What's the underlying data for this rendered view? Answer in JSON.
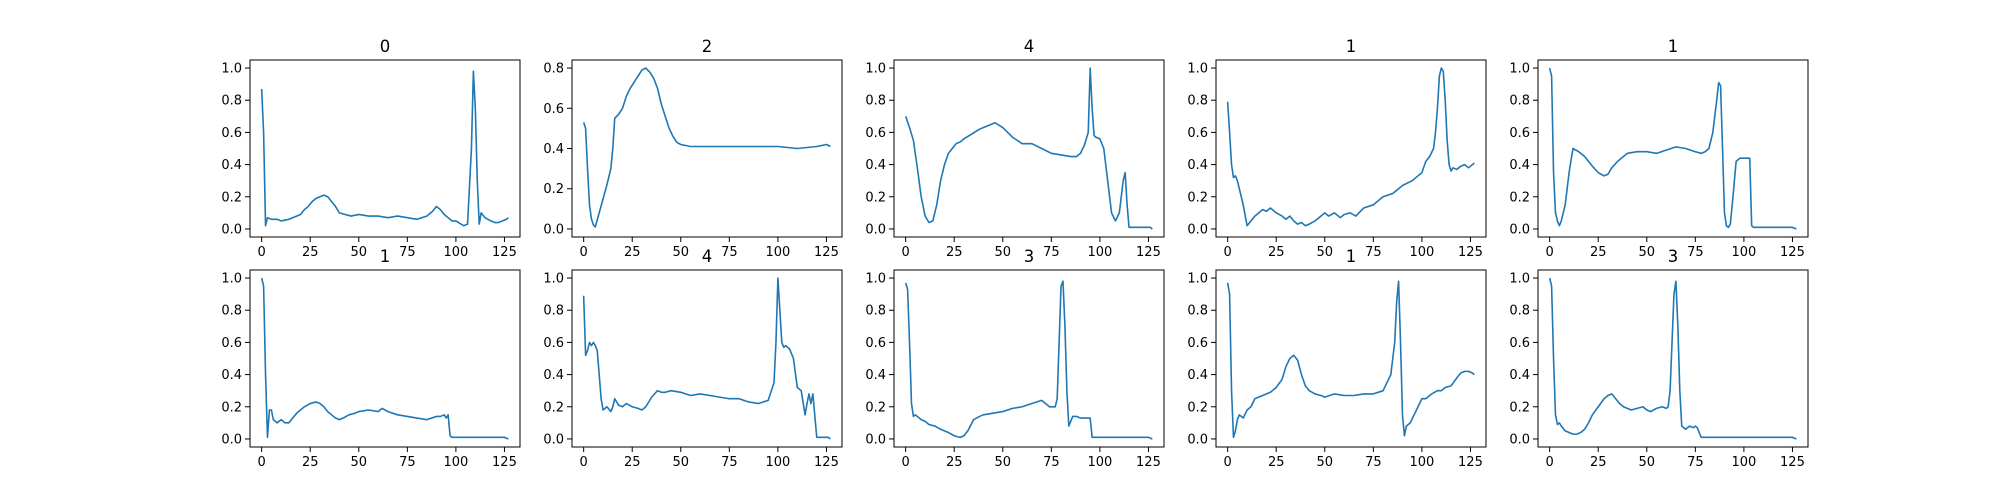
{
  "chart_data": [
    {
      "type": "line",
      "title": "0",
      "xlim": [
        -6,
        133
      ],
      "ylim": [
        -0.05,
        1.05
      ],
      "xticks": [
        "0",
        "25",
        "50",
        "75",
        "100",
        "125"
      ],
      "yticks": [
        "0.0",
        "0.2",
        "0.4",
        "0.6",
        "0.8",
        "1.0"
      ],
      "color": "#1f77b4",
      "x": [
        0,
        1,
        2,
        3,
        5,
        8,
        10,
        14,
        18,
        20,
        22,
        24,
        26,
        28,
        30,
        32,
        34,
        36,
        38,
        40,
        43,
        46,
        50,
        55,
        60,
        65,
        70,
        75,
        80,
        85,
        88,
        90,
        92,
        94,
        96,
        98,
        100,
        104,
        106,
        108,
        109,
        110,
        111,
        112,
        113,
        115,
        118,
        120,
        122,
        124,
        126,
        127
      ],
      "y": [
        0.87,
        0.6,
        0.02,
        0.07,
        0.06,
        0.06,
        0.05,
        0.06,
        0.08,
        0.09,
        0.12,
        0.14,
        0.17,
        0.19,
        0.2,
        0.21,
        0.2,
        0.17,
        0.14,
        0.1,
        0.09,
        0.08,
        0.09,
        0.08,
        0.08,
        0.07,
        0.08,
        0.07,
        0.06,
        0.08,
        0.11,
        0.14,
        0.12,
        0.09,
        0.07,
        0.05,
        0.05,
        0.02,
        0.03,
        0.5,
        0.98,
        0.75,
        0.3,
        0.03,
        0.1,
        0.07,
        0.05,
        0.04,
        0.04,
        0.05,
        0.06,
        0.07
      ]
    },
    {
      "type": "line",
      "title": "2",
      "xlim": [
        -6,
        133
      ],
      "ylim": [
        -0.04,
        0.84
      ],
      "xticks": [
        "0",
        "25",
        "50",
        "75",
        "100",
        "125"
      ],
      "yticks": [
        "0.0",
        "0.2",
        "0.4",
        "0.6",
        "0.8"
      ],
      "color": "#1f77b4",
      "x": [
        0,
        1,
        2,
        3,
        4,
        5,
        6,
        8,
        10,
        12,
        14,
        15,
        16,
        18,
        20,
        22,
        24,
        26,
        28,
        30,
        32,
        34,
        36,
        38,
        40,
        42,
        44,
        46,
        48,
        50,
        55,
        60,
        70,
        80,
        90,
        100,
        110,
        120,
        125,
        127
      ],
      "y": [
        0.53,
        0.5,
        0.3,
        0.12,
        0.05,
        0.02,
        0.01,
        0.08,
        0.15,
        0.22,
        0.3,
        0.4,
        0.55,
        0.57,
        0.6,
        0.66,
        0.7,
        0.73,
        0.76,
        0.79,
        0.8,
        0.78,
        0.75,
        0.7,
        0.62,
        0.56,
        0.5,
        0.46,
        0.43,
        0.42,
        0.41,
        0.41,
        0.41,
        0.41,
        0.41,
        0.41,
        0.4,
        0.41,
        0.42,
        0.41
      ]
    },
    {
      "type": "line",
      "title": "4",
      "xlim": [
        -6,
        133
      ],
      "ylim": [
        -0.05,
        1.05
      ],
      "xticks": [
        "0",
        "25",
        "50",
        "75",
        "100",
        "125"
      ],
      "yticks": [
        "0.0",
        "0.2",
        "0.4",
        "0.6",
        "0.8",
        "1.0"
      ],
      "color": "#1f77b4",
      "x": [
        0,
        2,
        4,
        6,
        8,
        10,
        12,
        14,
        16,
        18,
        20,
        22,
        24,
        26,
        28,
        30,
        34,
        38,
        42,
        46,
        50,
        55,
        60,
        65,
        70,
        75,
        80,
        85,
        88,
        90,
        92,
        94,
        95,
        96,
        97,
        98,
        100,
        102,
        104,
        106,
        108,
        110,
        112,
        113,
        114,
        115,
        118,
        120,
        122,
        124,
        126,
        127
      ],
      "y": [
        0.7,
        0.63,
        0.55,
        0.38,
        0.2,
        0.08,
        0.04,
        0.05,
        0.15,
        0.3,
        0.4,
        0.47,
        0.5,
        0.53,
        0.54,
        0.56,
        0.59,
        0.62,
        0.64,
        0.66,
        0.63,
        0.57,
        0.53,
        0.53,
        0.5,
        0.47,
        0.46,
        0.45,
        0.45,
        0.47,
        0.52,
        0.6,
        1.0,
        0.75,
        0.58,
        0.57,
        0.56,
        0.5,
        0.3,
        0.1,
        0.05,
        0.1,
        0.3,
        0.35,
        0.15,
        0.01,
        0.01,
        0.01,
        0.01,
        0.01,
        0.01,
        0.0
      ]
    },
    {
      "type": "line",
      "title": "1",
      "xlim": [
        -6,
        133
      ],
      "ylim": [
        -0.05,
        1.05
      ],
      "xticks": [
        "0",
        "25",
        "50",
        "75",
        "100",
        "125"
      ],
      "yticks": [
        "0.0",
        "0.2",
        "0.4",
        "0.6",
        "0.8",
        "1.0"
      ],
      "color": "#1f77b4",
      "x": [
        0,
        1,
        2,
        3,
        4,
        5,
        6,
        8,
        10,
        12,
        14,
        16,
        18,
        20,
        22,
        25,
        28,
        30,
        32,
        34,
        36,
        38,
        40,
        42,
        45,
        48,
        50,
        52,
        55,
        58,
        60,
        63,
        66,
        70,
        75,
        80,
        85,
        90,
        95,
        100,
        102,
        104,
        106,
        107,
        108,
        109,
        110,
        111,
        112,
        113,
        114,
        115,
        116,
        118,
        120,
        122,
        124,
        126,
        127
      ],
      "y": [
        0.79,
        0.6,
        0.4,
        0.32,
        0.33,
        0.3,
        0.25,
        0.15,
        0.02,
        0.05,
        0.08,
        0.1,
        0.12,
        0.11,
        0.13,
        0.1,
        0.08,
        0.06,
        0.08,
        0.05,
        0.03,
        0.04,
        0.02,
        0.03,
        0.05,
        0.08,
        0.1,
        0.08,
        0.1,
        0.07,
        0.09,
        0.1,
        0.08,
        0.13,
        0.15,
        0.2,
        0.22,
        0.27,
        0.3,
        0.35,
        0.42,
        0.45,
        0.5,
        0.6,
        0.75,
        0.95,
        1.0,
        0.98,
        0.8,
        0.55,
        0.4,
        0.36,
        0.38,
        0.37,
        0.39,
        0.4,
        0.38,
        0.4,
        0.41
      ]
    },
    {
      "type": "line",
      "title": "1",
      "xlim": [
        -6,
        133
      ],
      "ylim": [
        -0.05,
        1.05
      ],
      "xticks": [
        "0",
        "25",
        "50",
        "75",
        "100",
        "125"
      ],
      "yticks": [
        "0.0",
        "0.2",
        "0.4",
        "0.6",
        "0.8",
        "1.0"
      ],
      "color": "#1f77b4",
      "x": [
        0,
        1,
        2,
        3,
        4,
        5,
        6,
        8,
        10,
        12,
        15,
        18,
        20,
        22,
        25,
        28,
        30,
        32,
        35,
        38,
        40,
        45,
        50,
        55,
        60,
        65,
        70,
        75,
        78,
        80,
        82,
        84,
        86,
        87,
        88,
        89,
        90,
        91,
        92,
        93,
        94,
        96,
        98,
        100,
        102,
        103,
        104,
        105,
        110,
        115,
        120,
        125,
        127
      ],
      "y": [
        1.0,
        0.95,
        0.35,
        0.1,
        0.05,
        0.02,
        0.05,
        0.15,
        0.35,
        0.5,
        0.48,
        0.45,
        0.42,
        0.39,
        0.35,
        0.33,
        0.34,
        0.38,
        0.42,
        0.45,
        0.47,
        0.48,
        0.48,
        0.47,
        0.49,
        0.51,
        0.5,
        0.48,
        0.47,
        0.48,
        0.5,
        0.6,
        0.8,
        0.91,
        0.89,
        0.5,
        0.1,
        0.02,
        0.01,
        0.03,
        0.15,
        0.42,
        0.44,
        0.44,
        0.44,
        0.44,
        0.02,
        0.01,
        0.01,
        0.01,
        0.01,
        0.01,
        0.0
      ]
    },
    {
      "type": "line",
      "title": "1",
      "xlim": [
        -6,
        133
      ],
      "ylim": [
        -0.05,
        1.05
      ],
      "xticks": [
        "0",
        "25",
        "50",
        "75",
        "100",
        "125"
      ],
      "yticks": [
        "0.0",
        "0.2",
        "0.4",
        "0.6",
        "0.8",
        "1.0"
      ],
      "color": "#1f77b4",
      "x": [
        0,
        1,
        2,
        3,
        4,
        5,
        6,
        8,
        10,
        12,
        14,
        16,
        18,
        20,
        22,
        25,
        28,
        30,
        32,
        34,
        36,
        38,
        40,
        42,
        45,
        48,
        50,
        55,
        60,
        62,
        65,
        70,
        75,
        80,
        85,
        90,
        92,
        94,
        95,
        96,
        97,
        98,
        100,
        105,
        110,
        115,
        120,
        125,
        127
      ],
      "y": [
        1.0,
        0.95,
        0.4,
        0.01,
        0.18,
        0.18,
        0.12,
        0.1,
        0.12,
        0.1,
        0.1,
        0.13,
        0.16,
        0.18,
        0.2,
        0.22,
        0.23,
        0.22,
        0.2,
        0.17,
        0.15,
        0.13,
        0.12,
        0.13,
        0.15,
        0.16,
        0.17,
        0.18,
        0.17,
        0.19,
        0.17,
        0.15,
        0.14,
        0.13,
        0.12,
        0.14,
        0.14,
        0.15,
        0.13,
        0.15,
        0.02,
        0.01,
        0.01,
        0.01,
        0.01,
        0.01,
        0.01,
        0.01,
        0.0
      ]
    },
    {
      "type": "line",
      "title": "4",
      "xlim": [
        -6,
        133
      ],
      "ylim": [
        -0.05,
        1.05
      ],
      "xticks": [
        "0",
        "25",
        "50",
        "75",
        "100",
        "125"
      ],
      "yticks": [
        "0.0",
        "0.2",
        "0.4",
        "0.6",
        "0.8",
        "1.0"
      ],
      "color": "#1f77b4",
      "x": [
        0,
        1,
        2,
        3,
        4,
        5,
        6,
        7,
        8,
        9,
        10,
        12,
        14,
        15,
        16,
        18,
        20,
        22,
        25,
        28,
        30,
        32,
        35,
        38,
        40,
        42,
        45,
        50,
        55,
        60,
        65,
        70,
        75,
        80,
        85,
        90,
        95,
        98,
        99,
        100,
        101,
        102,
        103,
        104,
        106,
        108,
        110,
        112,
        114,
        115,
        116,
        117,
        118,
        120,
        122,
        124,
        126,
        127
      ],
      "y": [
        0.89,
        0.52,
        0.55,
        0.6,
        0.58,
        0.6,
        0.58,
        0.55,
        0.4,
        0.25,
        0.18,
        0.2,
        0.17,
        0.2,
        0.25,
        0.21,
        0.2,
        0.22,
        0.2,
        0.19,
        0.18,
        0.2,
        0.26,
        0.3,
        0.29,
        0.29,
        0.3,
        0.29,
        0.27,
        0.28,
        0.27,
        0.26,
        0.25,
        0.25,
        0.23,
        0.22,
        0.24,
        0.35,
        0.6,
        1.0,
        0.8,
        0.6,
        0.57,
        0.58,
        0.56,
        0.5,
        0.32,
        0.3,
        0.15,
        0.22,
        0.28,
        0.22,
        0.28,
        0.01,
        0.01,
        0.01,
        0.01,
        0.0
      ]
    },
    {
      "type": "line",
      "title": "3",
      "xlim": [
        -6,
        133
      ],
      "ylim": [
        -0.05,
        1.05
      ],
      "xticks": [
        "0",
        "25",
        "50",
        "75",
        "100",
        "125"
      ],
      "yticks": [
        "0.0",
        "0.2",
        "0.4",
        "0.6",
        "0.8",
        "1.0"
      ],
      "color": "#1f77b4",
      "x": [
        0,
        1,
        2,
        3,
        4,
        5,
        6,
        8,
        10,
        12,
        15,
        18,
        20,
        22,
        25,
        28,
        30,
        32,
        35,
        38,
        40,
        45,
        50,
        55,
        60,
        65,
        70,
        72,
        74,
        76,
        77,
        78,
        79,
        80,
        81,
        82,
        83,
        84,
        86,
        88,
        90,
        92,
        94,
        95,
        96,
        97,
        100,
        110,
        120,
        125,
        127
      ],
      "y": [
        0.97,
        0.93,
        0.6,
        0.22,
        0.14,
        0.15,
        0.14,
        0.12,
        0.11,
        0.09,
        0.08,
        0.06,
        0.05,
        0.04,
        0.02,
        0.01,
        0.02,
        0.05,
        0.12,
        0.14,
        0.15,
        0.16,
        0.17,
        0.19,
        0.2,
        0.22,
        0.24,
        0.22,
        0.2,
        0.2,
        0.2,
        0.25,
        0.6,
        0.95,
        0.98,
        0.7,
        0.3,
        0.08,
        0.14,
        0.14,
        0.13,
        0.13,
        0.13,
        0.13,
        0.01,
        0.01,
        0.01,
        0.01,
        0.01,
        0.01,
        0.0
      ]
    },
    {
      "type": "line",
      "title": "1",
      "xlim": [
        -6,
        133
      ],
      "ylim": [
        -0.05,
        1.05
      ],
      "xticks": [
        "0",
        "25",
        "50",
        "75",
        "100",
        "125"
      ],
      "yticks": [
        "0.0",
        "0.2",
        "0.4",
        "0.6",
        "0.8",
        "1.0"
      ],
      "color": "#1f77b4",
      "x": [
        0,
        1,
        2,
        3,
        4,
        5,
        6,
        8,
        10,
        12,
        14,
        16,
        18,
        20,
        22,
        25,
        28,
        30,
        32,
        34,
        36,
        38,
        40,
        42,
        45,
        48,
        50,
        55,
        60,
        65,
        70,
        75,
        80,
        84,
        86,
        87,
        88,
        89,
        90,
        91,
        92,
        94,
        96,
        98,
        100,
        102,
        105,
        108,
        110,
        112,
        115,
        118,
        120,
        122,
        124,
        126,
        127
      ],
      "y": [
        0.97,
        0.9,
        0.3,
        0.01,
        0.05,
        0.12,
        0.15,
        0.13,
        0.18,
        0.2,
        0.25,
        0.26,
        0.27,
        0.28,
        0.29,
        0.32,
        0.37,
        0.45,
        0.5,
        0.52,
        0.49,
        0.4,
        0.33,
        0.3,
        0.28,
        0.27,
        0.26,
        0.28,
        0.27,
        0.27,
        0.28,
        0.28,
        0.3,
        0.4,
        0.6,
        0.85,
        0.98,
        0.6,
        0.15,
        0.02,
        0.08,
        0.1,
        0.15,
        0.2,
        0.25,
        0.25,
        0.28,
        0.3,
        0.3,
        0.32,
        0.33,
        0.38,
        0.41,
        0.42,
        0.42,
        0.41,
        0.4
      ]
    },
    {
      "type": "line",
      "title": "3",
      "xlim": [
        -6,
        133
      ],
      "ylim": [
        -0.05,
        1.05
      ],
      "xticks": [
        "0",
        "25",
        "50",
        "75",
        "100",
        "125"
      ],
      "yticks": [
        "0.0",
        "0.2",
        "0.4",
        "0.6",
        "0.8",
        "1.0"
      ],
      "color": "#1f77b4",
      "x": [
        0,
        1,
        2,
        3,
        4,
        5,
        6,
        8,
        10,
        12,
        14,
        16,
        18,
        20,
        22,
        25,
        28,
        30,
        32,
        34,
        36,
        38,
        40,
        42,
        45,
        48,
        50,
        52,
        55,
        58,
        60,
        61,
        62,
        63,
        64,
        65,
        66,
        67,
        68,
        70,
        72,
        74,
        75,
        76,
        78,
        80,
        90,
        100,
        110,
        120,
        125,
        127
      ],
      "y": [
        1.0,
        0.95,
        0.5,
        0.15,
        0.09,
        0.1,
        0.08,
        0.05,
        0.04,
        0.03,
        0.03,
        0.04,
        0.06,
        0.1,
        0.15,
        0.2,
        0.25,
        0.27,
        0.28,
        0.25,
        0.22,
        0.2,
        0.19,
        0.18,
        0.19,
        0.2,
        0.18,
        0.17,
        0.19,
        0.2,
        0.19,
        0.2,
        0.3,
        0.6,
        0.9,
        0.98,
        0.7,
        0.3,
        0.08,
        0.06,
        0.08,
        0.07,
        0.08,
        0.07,
        0.01,
        0.01,
        0.01,
        0.01,
        0.01,
        0.01,
        0.01,
        0.0
      ]
    }
  ]
}
